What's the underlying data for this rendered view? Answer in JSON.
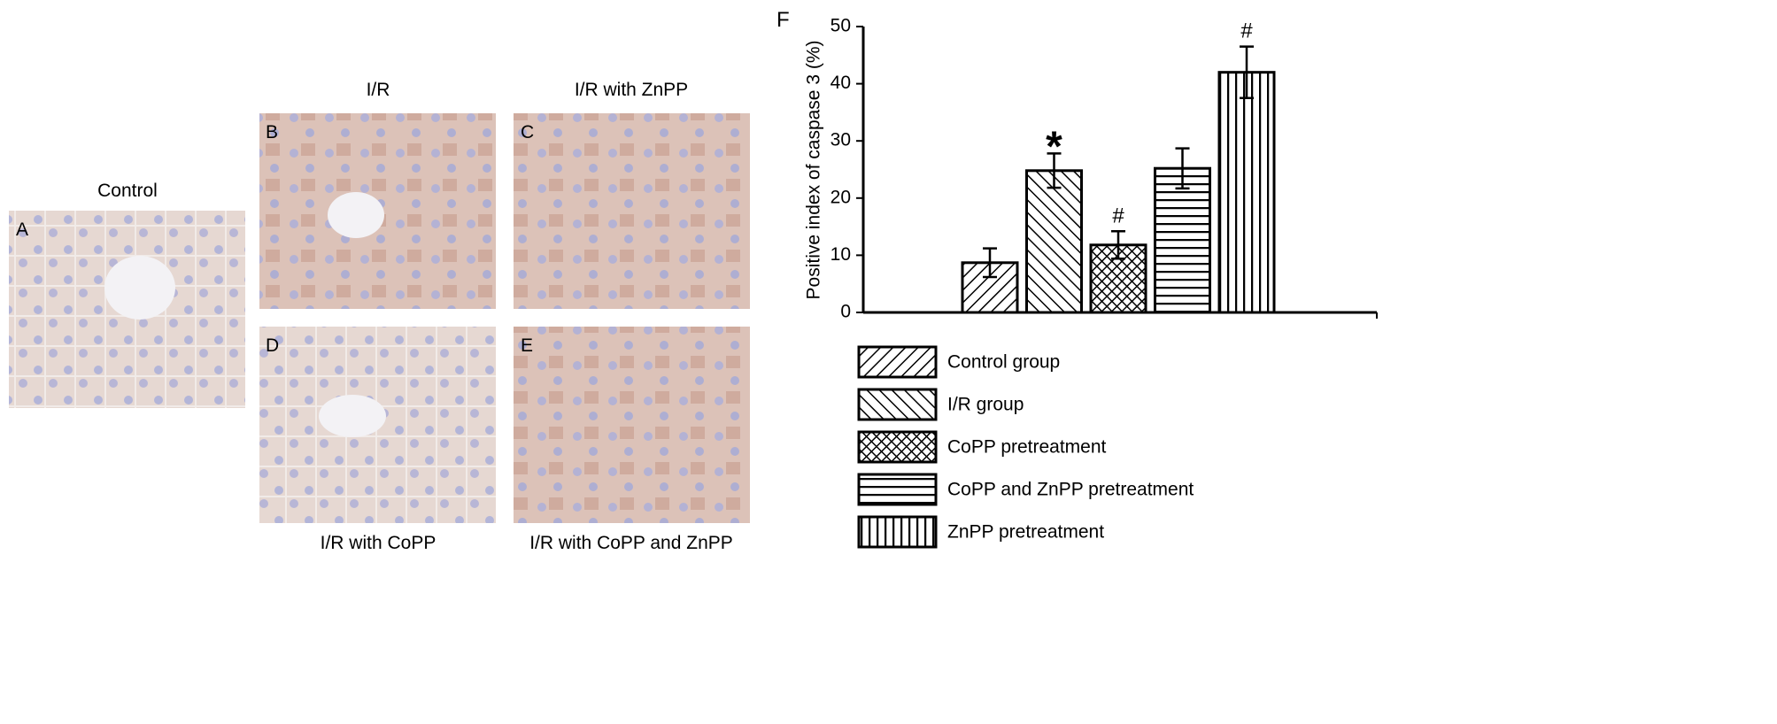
{
  "panels": [
    {
      "letter": "A",
      "caption": "Control"
    },
    {
      "letter": "B",
      "caption": "I/R"
    },
    {
      "letter": "C",
      "caption": "I/R with ZnPP"
    },
    {
      "letter": "D",
      "caption": "I/R with CoPP"
    },
    {
      "letter": "E",
      "caption": "I/R with CoPP and ZnPP"
    }
  ],
  "chart_data": {
    "type": "bar",
    "panel_letter": "F",
    "y_label": "Positive index of caspase 3 (%)",
    "ylim": [
      0,
      50
    ],
    "yticks": [
      0,
      10,
      20,
      30,
      40,
      50
    ],
    "series": [
      {
        "name": "Control group",
        "pattern": "forward-diagonal",
        "values": [
          8.7
        ],
        "errors": [
          2.5
        ]
      },
      {
        "name": "I/R group",
        "pattern": "back-diagonal",
        "values": [
          24.8
        ],
        "errors": [
          3.0
        ],
        "annotation": "*"
      },
      {
        "name": "CoPP pretreatment",
        "pattern": "crosshatch",
        "values": [
          11.8
        ],
        "errors": [
          2.4
        ],
        "annotation": "#"
      },
      {
        "name": "CoPP and ZnPP pretreatment",
        "pattern": "horizontal",
        "values": [
          25.2
        ],
        "errors": [
          3.5
        ]
      },
      {
        "name": "ZnPP pretreatment",
        "pattern": "vertical",
        "values": [
          42.0
        ],
        "errors": [
          4.5
        ],
        "annotation": "#"
      }
    ]
  }
}
